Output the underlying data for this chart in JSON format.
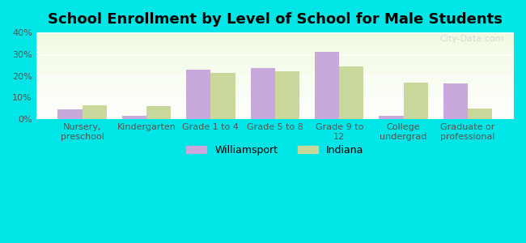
{
  "title": "School Enrollment by Level of School for Male Students",
  "categories": [
    "Nursery,\npreschool",
    "Kindergarten",
    "Grade 1 to 4",
    "Grade 5 to 8",
    "Grade 9 to\n12",
    "College\nundergrad",
    "Graduate or\nprofessional"
  ],
  "williamsport": [
    4.5,
    1.5,
    23.0,
    23.5,
    31.0,
    1.5,
    16.5
  ],
  "indiana": [
    6.5,
    6.0,
    21.5,
    22.0,
    24.5,
    17.0,
    5.0
  ],
  "williamsport_color": "#c9a8dc",
  "indiana_color": "#c8d89a",
  "bg_color": "#00e5e5",
  "ylim": [
    0,
    40
  ],
  "yticks": [
    0,
    10,
    20,
    30,
    40
  ],
  "bar_width": 0.38,
  "legend_labels": [
    "Williamsport",
    "Indiana"
  ]
}
